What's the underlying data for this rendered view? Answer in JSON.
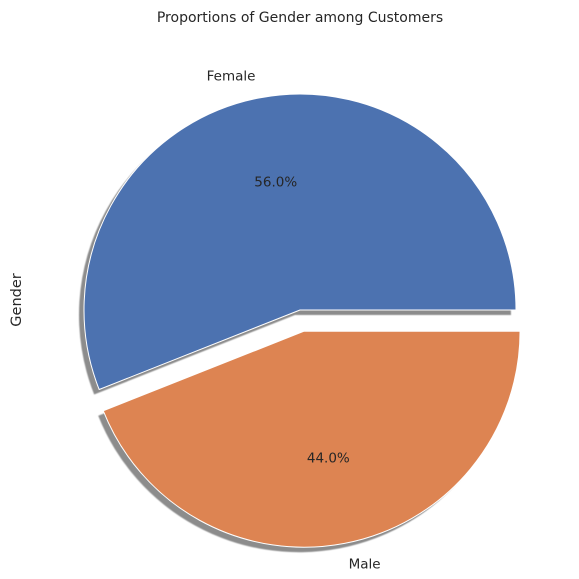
{
  "chart_data": {
    "type": "pie",
    "title": "Proportions of Gender among Customers",
    "ylabel": "Gender",
    "xlabel": "",
    "categories": [
      "Female",
      "Male"
    ],
    "values": [
      56.0,
      44.0
    ],
    "percent_labels": [
      "56.0%",
      "44.0%"
    ],
    "colors": [
      "#4c72b0",
      "#dd8452"
    ],
    "explode": [
      0,
      0.1
    ],
    "shadow": true,
    "start_angle": 0,
    "direction": "counterclockwise"
  }
}
